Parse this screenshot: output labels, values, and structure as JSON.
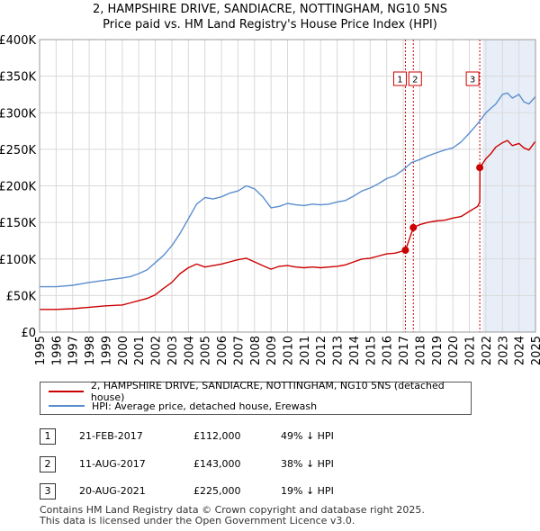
{
  "title": "2, HAMPSHIRE DRIVE, SANDIACRE, NOTTINGHAM, NG10 5NS",
  "subtitle": "Price paid vs. HM Land Registry's House Price Index (HPI)",
  "colors": {
    "property": "#cc0000",
    "hpi": "#5b8ecf",
    "shade": "#e8eef8",
    "marker_line": "#cc0000"
  },
  "chart_data": {
    "type": "line",
    "xlim": [
      1995,
      2025
    ],
    "ylim": [
      0,
      400000
    ],
    "y_ticks": [
      {
        "value": 0,
        "label": "£0"
      },
      {
        "value": 50000,
        "label": "£50K"
      },
      {
        "value": 100000,
        "label": "£100K"
      },
      {
        "value": 150000,
        "label": "£150K"
      },
      {
        "value": 200000,
        "label": "£200K"
      },
      {
        "value": 250000,
        "label": "£250K"
      },
      {
        "value": 300000,
        "label": "£300K"
      },
      {
        "value": 350000,
        "label": "£350K"
      },
      {
        "value": 400000,
        "label": "£400K"
      }
    ],
    "x_ticks": [
      "1995",
      "1996",
      "1997",
      "1998",
      "1999",
      "2000",
      "2001",
      "2002",
      "2003",
      "2004",
      "2005",
      "2006",
      "2007",
      "2008",
      "2009",
      "2010",
      "2011",
      "2012",
      "2013",
      "2014",
      "2015",
      "2016",
      "2017",
      "2018",
      "2019",
      "2020",
      "2021",
      "2022",
      "2023",
      "2024",
      "2025"
    ],
    "shaded_span": [
      2021.8,
      2025
    ],
    "series": [
      {
        "name": "2, HAMPSHIRE DRIVE, SANDIACRE, NOTTINGHAM, NG10 5NS (detached house)",
        "color": "#cc0000",
        "x": [
          1995,
          1996,
          1997,
          1998,
          1999,
          2000,
          2000.5,
          2001,
          2001.5,
          2002,
          2002.5,
          2003,
          2003.5,
          2004,
          2004.5,
          2005,
          2005.5,
          2006,
          2006.5,
          2007,
          2007.5,
          2008,
          2008.5,
          2009,
          2009.5,
          2010,
          2010.5,
          2011,
          2011.5,
          2012,
          2012.5,
          2013,
          2013.5,
          2014,
          2014.5,
          2015,
          2015.5,
          2016,
          2016.5,
          2017.13,
          2017.14,
          2017.61,
          2017.62,
          2018,
          2018.5,
          2019,
          2019.5,
          2020,
          2020.5,
          2021,
          2021.5,
          2021.63,
          2021.64,
          2022,
          2022.3,
          2022.6,
          2023,
          2023.3,
          2023.6,
          2024,
          2024.3,
          2024.6,
          2025
        ],
        "y": [
          31000,
          31000,
          32000,
          34000,
          36000,
          37000,
          40000,
          43000,
          46000,
          51000,
          60000,
          68000,
          80000,
          88000,
          93000,
          89000,
          91000,
          93000,
          96000,
          99000,
          101000,
          96000,
          91000,
          86000,
          90000,
          91000,
          89000,
          88000,
          89000,
          88000,
          89000,
          90000,
          92000,
          96000,
          100000,
          101000,
          104000,
          107000,
          108000,
          112000,
          112000,
          143000,
          143000,
          147000,
          150000,
          152000,
          153000,
          156000,
          158000,
          165000,
          172000,
          178000,
          225000,
          237000,
          244000,
          253000,
          259000,
          262000,
          255000,
          258000,
          252000,
          249000,
          261000
        ]
      },
      {
        "name": "HPI: Average price, detached house, Erewash",
        "color": "#5b8ecf",
        "x": [
          1995,
          1996,
          1997,
          1998,
          1999,
          2000,
          2000.5,
          2001,
          2001.5,
          2002,
          2002.5,
          2003,
          2003.5,
          2004,
          2004.5,
          2005,
          2005.5,
          2006,
          2006.5,
          2007,
          2007.5,
          2008,
          2008.5,
          2009,
          2009.5,
          2010,
          2010.5,
          2011,
          2011.5,
          2012,
          2012.5,
          2013,
          2013.5,
          2014,
          2014.5,
          2015,
          2015.5,
          2016,
          2016.5,
          2017,
          2017.5,
          2018,
          2018.5,
          2019,
          2019.5,
          2020,
          2020.5,
          2021,
          2021.5,
          2022,
          2022.3,
          2022.6,
          2023,
          2023.3,
          2023.6,
          2024,
          2024.3,
          2024.6,
          2025
        ],
        "y": [
          62000,
          62000,
          64000,
          68000,
          71000,
          74000,
          76000,
          80000,
          85000,
          95000,
          105000,
          118000,
          135000,
          155000,
          175000,
          184000,
          182000,
          185000,
          190000,
          193000,
          200000,
          196000,
          185000,
          170000,
          172000,
          176000,
          174000,
          173000,
          175000,
          174000,
          175000,
          178000,
          180000,
          186000,
          193000,
          197000,
          203000,
          210000,
          214000,
          222000,
          232000,
          236000,
          241000,
          245000,
          249000,
          252000,
          260000,
          272000,
          285000,
          300000,
          306000,
          312000,
          325000,
          327000,
          320000,
          325000,
          315000,
          312000,
          322000
        ]
      }
    ],
    "transactions": [
      {
        "id": "1",
        "x": 2017.13,
        "price": 112000
      },
      {
        "id": "2",
        "x": 2017.61,
        "price": 143000
      },
      {
        "id": "3",
        "x": 2021.63,
        "price": 225000
      }
    ]
  },
  "legend": {
    "property_label": "2, HAMPSHIRE DRIVE, SANDIACRE, NOTTINGHAM, NG10 5NS (detached house)",
    "hpi_label": "HPI: Average price, detached house, Erewash"
  },
  "transactions_table": [
    {
      "num": "1",
      "date": "21-FEB-2017",
      "price": "£112,000",
      "delta": "49% ↓ HPI"
    },
    {
      "num": "2",
      "date": "11-AUG-2017",
      "price": "£143,000",
      "delta": "38% ↓ HPI"
    },
    {
      "num": "3",
      "date": "20-AUG-2021",
      "price": "£225,000",
      "delta": "19% ↓ HPI"
    }
  ],
  "footer": {
    "line1": "Contains HM Land Registry data © Crown copyright and database right 2025.",
    "line2": "This data is licensed under the Open Government Licence v3.0."
  }
}
